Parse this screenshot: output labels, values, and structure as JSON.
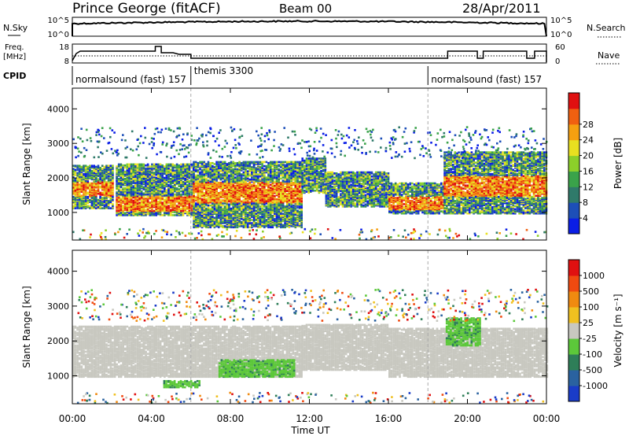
{
  "header": {
    "station": "Prince George (fitACF)",
    "beam": "Beam 00",
    "date": "28/Apr/2011"
  },
  "strips": {
    "nsky": {
      "label": "N.Sky",
      "ticks": [
        "10^5",
        "10^0"
      ]
    },
    "nsearch": {
      "label": "N.Search",
      "ticks": [
        "10^5",
        "10^0"
      ]
    },
    "freq": {
      "label_line1": "Freq.",
      "label_line2": "[MHz]",
      "ticks": [
        "18",
        "8"
      ]
    },
    "nave": {
      "label": "Nave",
      "ticks": [
        "60",
        "0"
      ]
    },
    "cpid": {
      "label": "CPID",
      "segments": [
        {
          "name": "normalsound (fast) 157",
          "start_hour": 0.0
        },
        {
          "name": "themis 3300",
          "start_hour": 6.0
        },
        {
          "name": "normalsound (fast) 157",
          "start_hour": 18.0
        }
      ]
    }
  },
  "chart_data": [
    {
      "type": "heatmap",
      "panel": "power",
      "ylabel": "Slant Range [km]",
      "yticks": [
        "1000",
        "2000",
        "3000",
        "4000"
      ],
      "ylim": [
        200,
        4600
      ],
      "xlim": [
        0,
        24
      ],
      "colorbar": {
        "label": "Power [dB]",
        "ticks": [
          "4",
          "8",
          "12",
          "16",
          "20",
          "24",
          "28"
        ],
        "colors": [
          "#0a1ee6",
          "#1d4fb8",
          "#2f7a6a",
          "#3aa34a",
          "#8ccf2a",
          "#e8e020",
          "#f5a010",
          "#f06010",
          "#e01010"
        ]
      },
      "echo_regions": [
        {
          "t0": 0.0,
          "t1": 2.1,
          "r0": 1150,
          "r1": 2400,
          "core_r0": 1500,
          "core_r1": 1900
        },
        {
          "t0": 2.2,
          "t1": 6.1,
          "r0": 950,
          "r1": 2450,
          "core_r0": 1050,
          "core_r1": 1500
        },
        {
          "t0": 6.1,
          "t1": 11.6,
          "r0": 600,
          "r1": 2500,
          "core_r0": 1300,
          "core_r1": 1900
        },
        {
          "t0": 11.6,
          "t1": 12.8,
          "r0": 1600,
          "r1": 2600,
          "core_r0": 0,
          "core_r1": 0
        },
        {
          "t0": 12.8,
          "t1": 16.0,
          "r0": 1200,
          "r1": 2200,
          "core_r0": 0,
          "core_r1": 0
        },
        {
          "t0": 16.0,
          "t1": 18.8,
          "r0": 1000,
          "r1": 1900,
          "core_r0": 1100,
          "core_r1": 1500
        },
        {
          "t0": 18.8,
          "t1": 24.0,
          "r0": 1000,
          "r1": 2800,
          "core_r0": 1500,
          "core_r1": 2100
        }
      ]
    },
    {
      "type": "heatmap",
      "panel": "velocity",
      "ylabel": "Slant Range [km]",
      "yticks": [
        "1000",
        "2000",
        "3000",
        "4000"
      ],
      "ylim": [
        200,
        4600
      ],
      "xlim": [
        0,
        24
      ],
      "colorbar": {
        "label": "Velocity [m s⁻¹]",
        "ticks": [
          "1000",
          "500",
          "100",
          "25",
          "-25",
          "-100",
          "-500",
          "-1000"
        ],
        "colors": [
          "#1a3cc8",
          "#2a62a0",
          "#2e7e58",
          "#5cc83a",
          "#c8c8c0",
          "#f0c020",
          "#f08a10",
          "#f04a10",
          "#e01010"
        ]
      },
      "ground_scatter_regions": [
        {
          "t0": 0.0,
          "t1": 11.6,
          "r0": 1000,
          "r1": 2450
        },
        {
          "t0": 11.6,
          "t1": 16.0,
          "r0": 1200,
          "r1": 2500
        },
        {
          "t0": 16.0,
          "t1": 24.0,
          "r0": 1000,
          "r1": 2400
        }
      ],
      "ionospheric_regions": [
        {
          "t0": 7.4,
          "t1": 11.2,
          "r0": 1000,
          "r1": 1500,
          "color": "#5cc83a"
        },
        {
          "t0": 4.6,
          "t1": 6.4,
          "r0": 700,
          "r1": 900,
          "color": "#5cc83a"
        },
        {
          "t0": 18.9,
          "t1": 20.6,
          "r0": 1900,
          "r1": 2700,
          "color": "#5cc83a"
        }
      ]
    }
  ],
  "xaxis": {
    "label": "Time UT",
    "ticks": [
      "00:00",
      "04:00",
      "08:00",
      "12:00",
      "16:00",
      "20:00",
      "00:00"
    ],
    "tick_hours": [
      0,
      4,
      8,
      12,
      16,
      20,
      24
    ]
  }
}
